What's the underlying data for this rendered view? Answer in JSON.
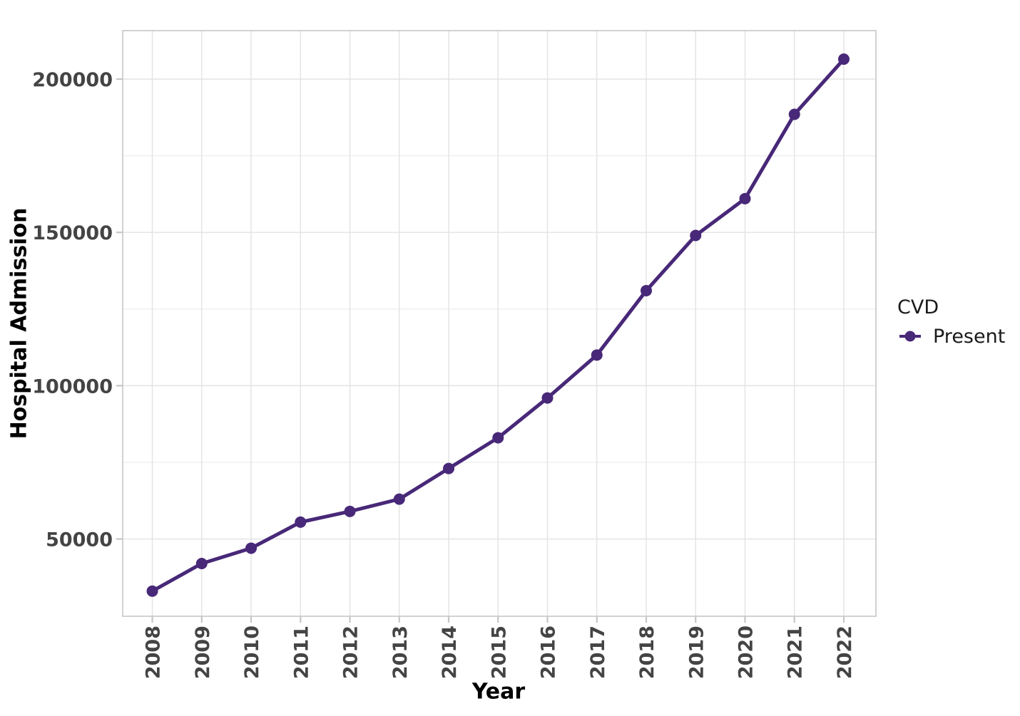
{
  "chart_data": {
    "type": "line",
    "title": "",
    "xlabel": "Year",
    "ylabel": "Hospital Admission",
    "x": [
      2008,
      2009,
      2010,
      2011,
      2012,
      2013,
      2014,
      2015,
      2016,
      2017,
      2018,
      2019,
      2020,
      2021,
      2022
    ],
    "x_tick_labels": [
      "2008",
      "2009",
      "2010",
      "2011",
      "2012",
      "2013",
      "2014",
      "2015",
      "2016",
      "2017",
      "2018",
      "2019",
      "2020",
      "2021",
      "2022"
    ],
    "y_ticks": [
      50000,
      100000,
      150000,
      200000
    ],
    "y_tick_labels": [
      "50000",
      "100000",
      "150000",
      "200000"
    ],
    "y_minor_ticks": [
      75000,
      125000,
      175000
    ],
    "xlim": [
      2007.4,
      2022.65
    ],
    "ylim": [
      24800,
      215800
    ],
    "grid": "major and minor, light gray, on white panel with border",
    "legend": {
      "title": "CVD",
      "position": "right-center"
    },
    "series": [
      {
        "name": "Present",
        "marker": "circle",
        "color": "#482878",
        "values": [
          33000,
          42000,
          47000,
          55500,
          59000,
          63000,
          73000,
          83000,
          96000,
          110000,
          131000,
          149000,
          161000,
          188500,
          206500
        ]
      }
    ]
  },
  "colors": {
    "background": "#ffffff",
    "panel_border": "#c6c6c6",
    "grid_major": "#e3e3e3",
    "grid_minor": "#eeeeee",
    "tick_mark": "#c6c6c6",
    "tick_label": "#444444",
    "axis_title": "#000000",
    "legend_text": "#1a1a1a",
    "series_present": "#482878"
  }
}
